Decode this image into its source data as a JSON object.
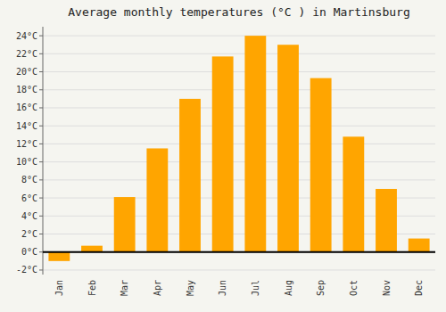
{
  "chart_data": {
    "type": "bar",
    "title": "Average monthly temperatures (°C ) in Martinsburg",
    "categories": [
      "Jan",
      "Feb",
      "Mar",
      "Apr",
      "May",
      "Jun",
      "Jul",
      "Aug",
      "Sep",
      "Oct",
      "Nov",
      "Dec"
    ],
    "values": [
      -1.0,
      0.7,
      6.1,
      11.5,
      17.0,
      21.7,
      24.0,
      23.0,
      19.3,
      12.8,
      7.0,
      1.5
    ],
    "color": "#FFA500",
    "ylim": [
      -2.5,
      25
    ],
    "yticks": [
      {
        "value": -2,
        "label": "-2°C"
      },
      {
        "value": 0,
        "label": "0°C"
      },
      {
        "value": 2,
        "label": "2°C"
      },
      {
        "value": 4,
        "label": "4°C"
      },
      {
        "value": 6,
        "label": "6°C"
      },
      {
        "value": 8,
        "label": "8°C"
      },
      {
        "value": 10,
        "label": "10°C"
      },
      {
        "value": 12,
        "label": "12°C"
      },
      {
        "value": 14,
        "label": "14°C"
      },
      {
        "value": 16,
        "label": "16°C"
      },
      {
        "value": 18,
        "label": "18°C"
      },
      {
        "value": 20,
        "label": "20°C"
      },
      {
        "value": 22,
        "label": "22°C"
      },
      {
        "value": 24,
        "label": "24°C"
      }
    ],
    "grid": true
  }
}
